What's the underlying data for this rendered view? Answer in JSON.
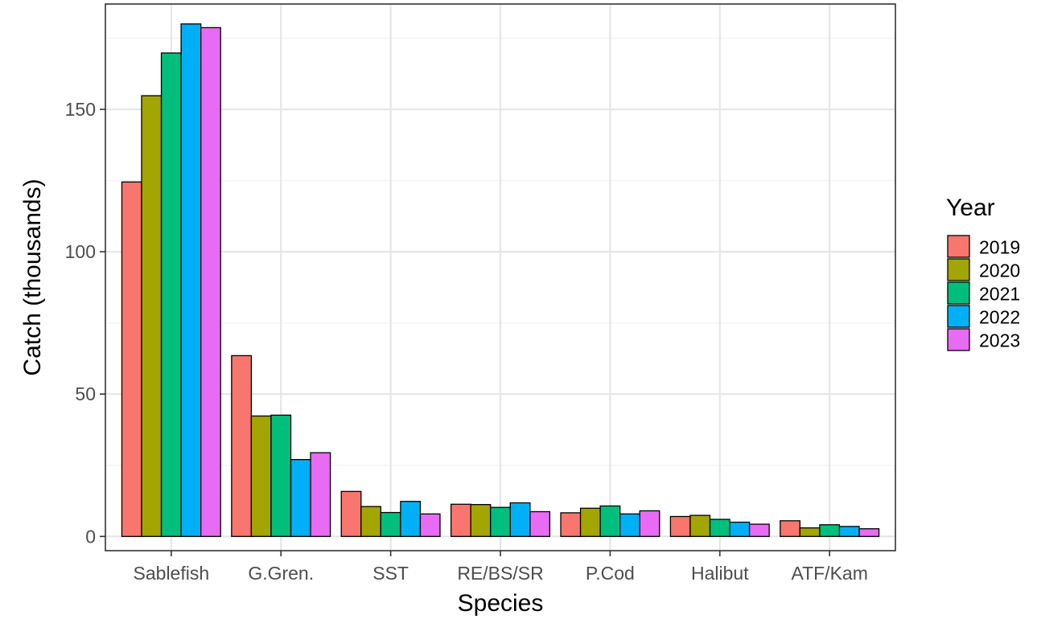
{
  "chart_data": {
    "type": "bar",
    "xlabel": "Species",
    "ylabel": "Catch (thousands)",
    "categories": [
      "Sablefish",
      "G.Gren.",
      "SST",
      "RE/BS/SR",
      "P.Cod",
      "Halibut",
      "ATF/Kam"
    ],
    "ylim": [
      -5,
      187
    ],
    "yticks": [
      0,
      50,
      100,
      150
    ],
    "grid": true,
    "legend": {
      "title": "Year",
      "placement": "right"
    },
    "series": [
      {
        "name": "2019",
        "color": "#F8766D",
        "values": [
          124.5,
          63.5,
          15.8,
          11.3,
          8.3,
          7.0,
          5.5
        ]
      },
      {
        "name": "2020",
        "color": "#A3A500",
        "values": [
          154.8,
          42.3,
          10.5,
          11.2,
          9.9,
          7.4,
          3.0
        ]
      },
      {
        "name": "2021",
        "color": "#00BF7D",
        "values": [
          169.8,
          42.6,
          8.4,
          10.2,
          10.7,
          6.0,
          4.1
        ]
      },
      {
        "name": "2022",
        "color": "#00B0F6",
        "values": [
          180.0,
          27.0,
          12.3,
          11.8,
          7.9,
          5.0,
          3.5
        ]
      },
      {
        "name": "2023",
        "color": "#E76BF3",
        "values": [
          178.7,
          29.4,
          7.9,
          8.7,
          9.0,
          4.3,
          2.7
        ]
      }
    ]
  }
}
